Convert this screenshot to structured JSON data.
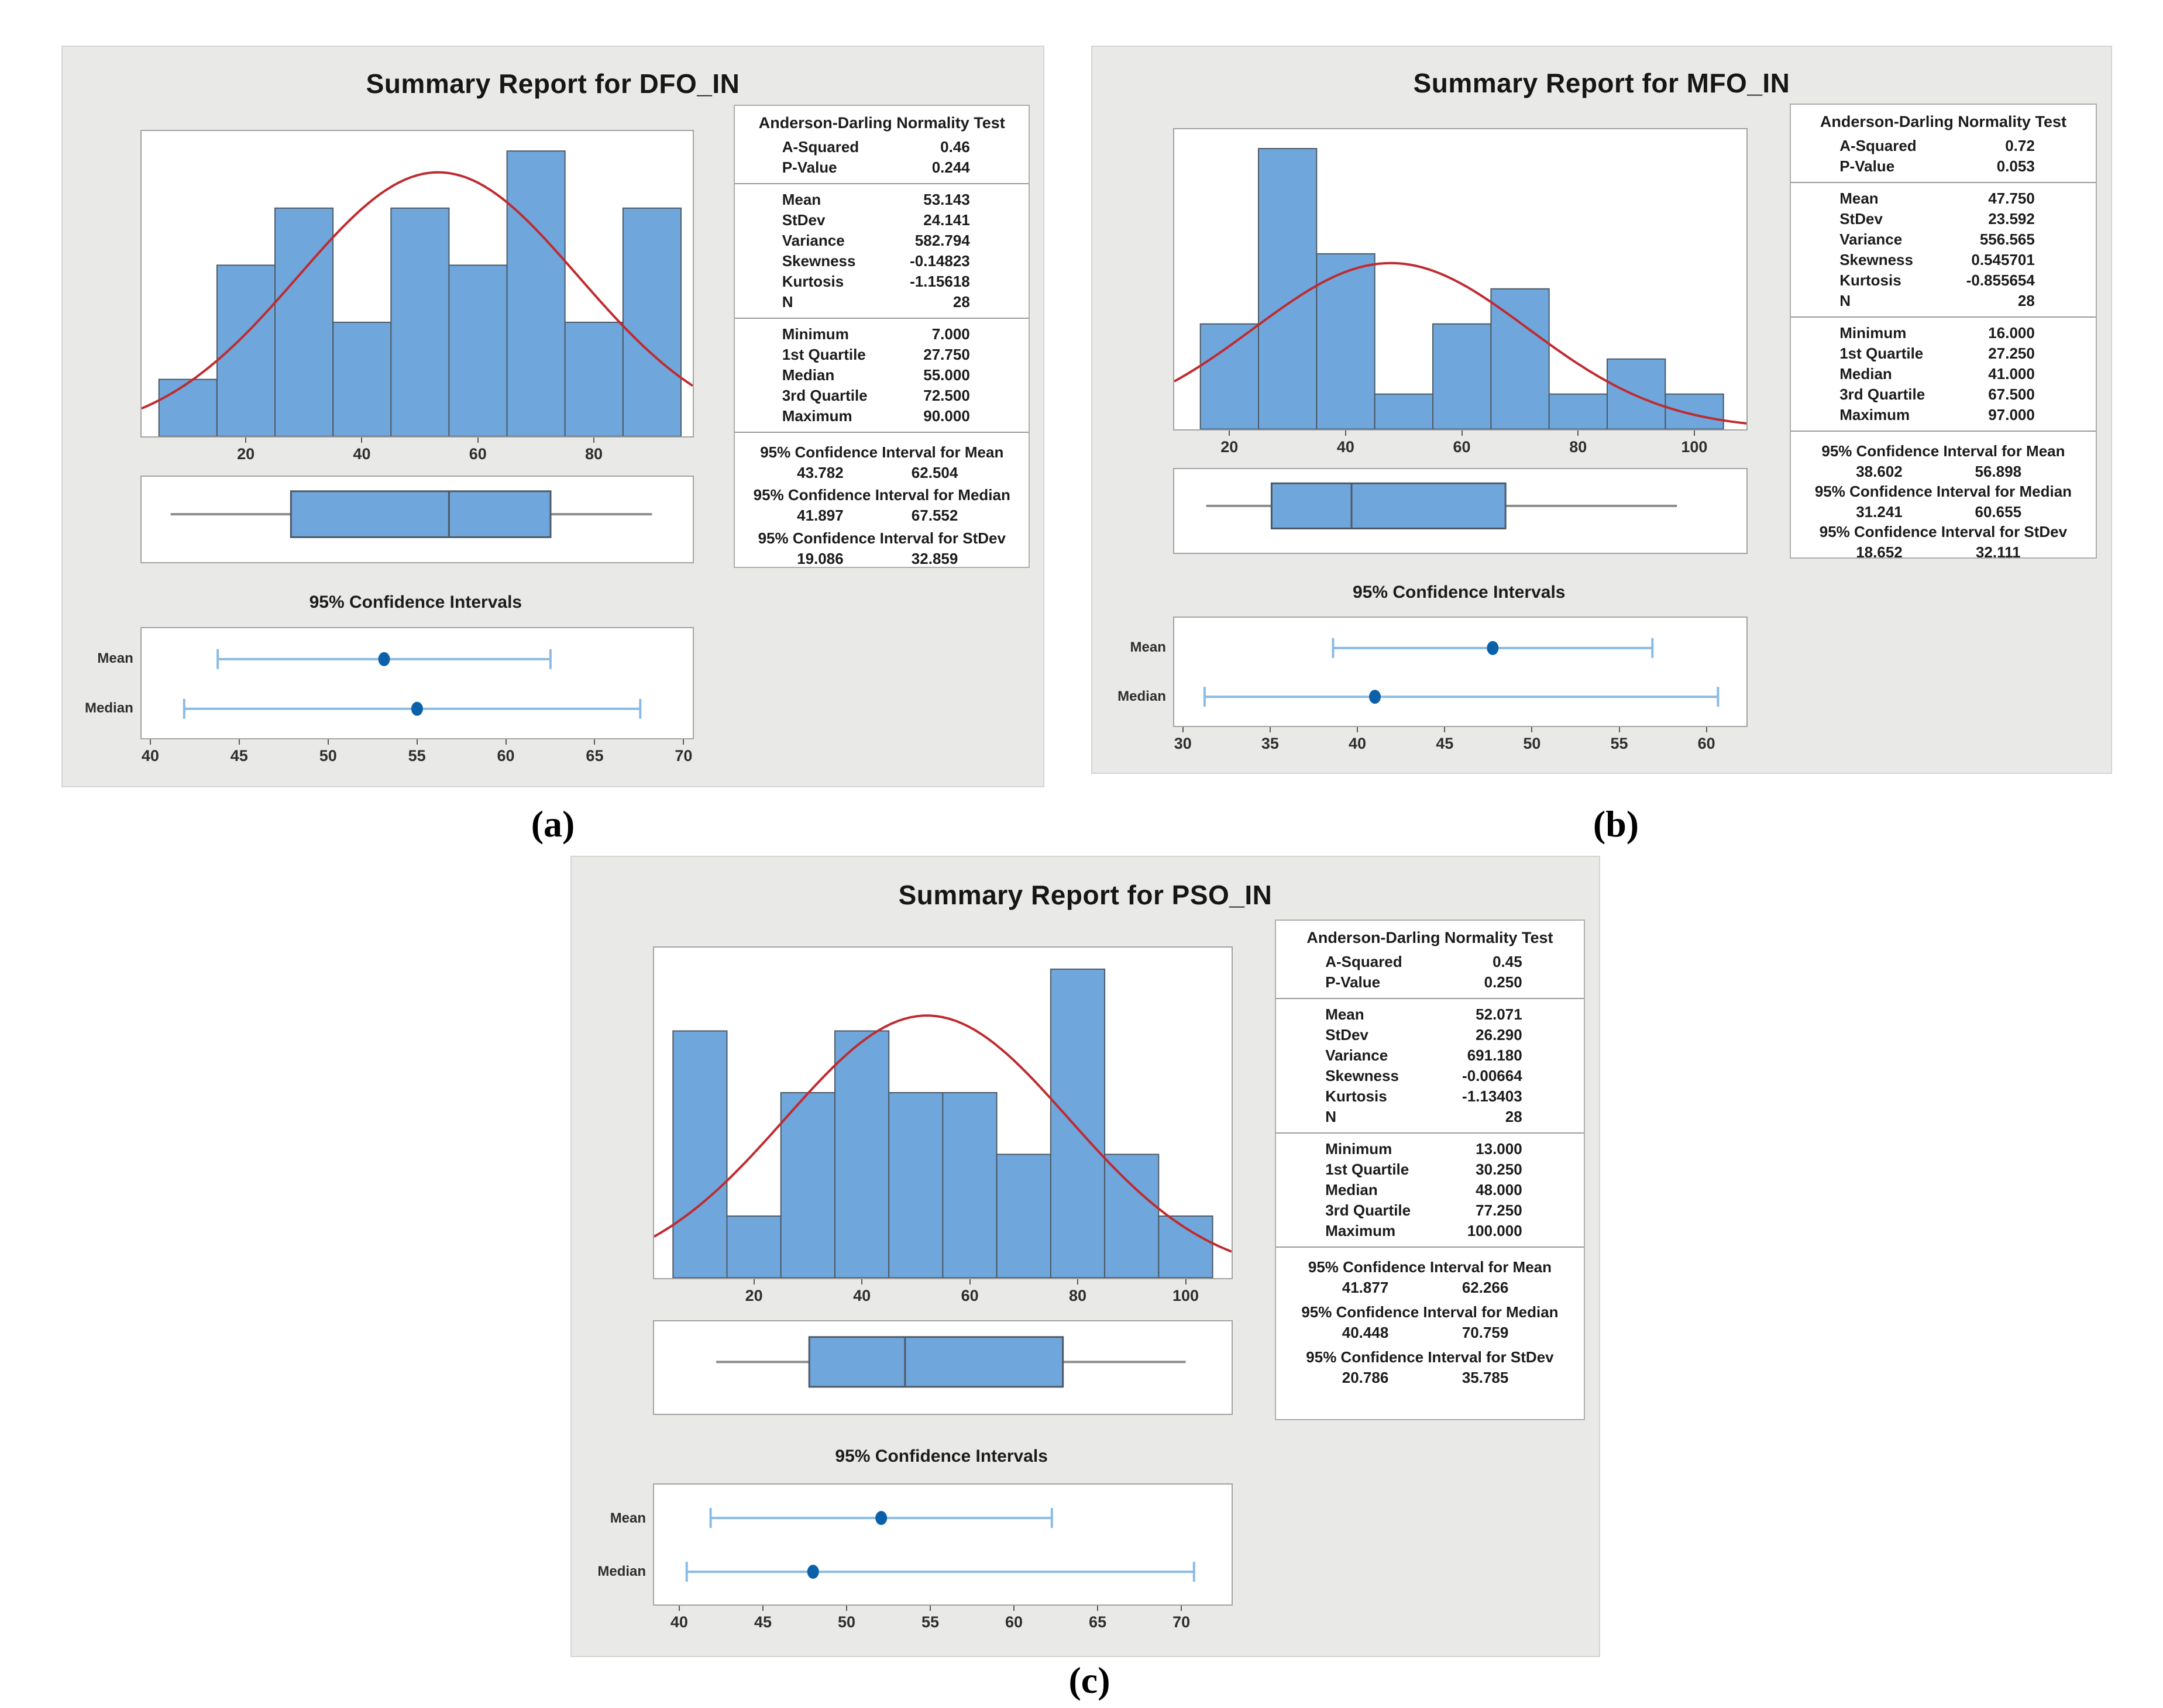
{
  "colors": {
    "panel_bg": "#e9e9e8",
    "plot_bg": "#ffffff",
    "plot_border": "#a3a3a3",
    "bar_fill": "#6fa6db",
    "bar_stroke": "#4d5a66",
    "curve": "#bf2b30",
    "box_stroke": "#4d5a66",
    "whisker": "#8c8c8c",
    "ci_line": "#8abbe4",
    "ci_point": "#0b61a9",
    "text": "#1c1c1c"
  },
  "chart_data": [
    {
      "id": "a",
      "caption": "(a)",
      "title": "Summary Report for DFO_IN",
      "type": "summary-report",
      "histogram": {
        "type": "bar",
        "bin_start": 5,
        "bin_width": 10,
        "counts": [
          1,
          3,
          4,
          2,
          4,
          3,
          5,
          2,
          4
        ],
        "x_ticks": [
          20,
          40,
          60,
          80
        ],
        "x_range": [
          2,
          97
        ],
        "y_max": 5.35,
        "normal_curve": {
          "mean": 53.143,
          "stdev": 24.141,
          "n": 28
        }
      },
      "boxplot": {
        "whisker_low": 7,
        "q1": 27.75,
        "median": 55,
        "q3": 72.5,
        "whisker_high": 90
      },
      "stats_table": {
        "header": "Anderson-Darling Normality Test",
        "sections": [
          {
            "rows": [
              [
                "A-Squared",
                "0.46"
              ],
              [
                "P-Value",
                "0.244"
              ]
            ]
          },
          {
            "rows": [
              [
                "Mean",
                "53.143"
              ],
              [
                "StDev",
                "24.141"
              ],
              [
                "Variance",
                "582.794"
              ],
              [
                "Skewness",
                "-0.14823"
              ],
              [
                "Kurtosis",
                "-1.15618"
              ],
              [
                "N",
                "28"
              ]
            ]
          },
          {
            "rows": [
              [
                "Minimum",
                "7.000"
              ],
              [
                "1st Quartile",
                "27.750"
              ],
              [
                "Median",
                "55.000"
              ],
              [
                "3rd Quartile",
                "72.500"
              ],
              [
                "Maximum",
                "90.000"
              ]
            ]
          }
        ],
        "ci_sections": [
          {
            "title": "95% Confidence Interval for Mean",
            "low": "43.782",
            "high": "62.504"
          },
          {
            "title": "95% Confidence Interval for Median",
            "low": "41.897",
            "high": "67.552"
          },
          {
            "title": "95% Confidence Interval for StDev",
            "low": "19.086",
            "high": "32.859"
          }
        ]
      },
      "ci_chart": {
        "title": "95% Confidence Intervals",
        "rows": [
          {
            "label": "Mean",
            "low": 43.782,
            "center": 53.143,
            "high": 62.504
          },
          {
            "label": "Median",
            "low": 41.897,
            "center": 55.0,
            "high": 67.552
          }
        ],
        "x_ticks": [
          40,
          45,
          50,
          55,
          60,
          65,
          70
        ],
        "x_range": [
          39.5,
          70.5
        ]
      }
    },
    {
      "id": "b",
      "caption": "(b)",
      "title": "Summary Report for MFO_IN",
      "type": "summary-report",
      "histogram": {
        "type": "bar",
        "bin_start": 15,
        "bin_width": 10,
        "counts": [
          3,
          8,
          5,
          1,
          3,
          4,
          1,
          2,
          1
        ],
        "x_ticks": [
          20,
          40,
          60,
          80,
          100
        ],
        "x_range": [
          10.5,
          109
        ],
        "y_max": 8.55,
        "normal_curve": {
          "mean": 47.75,
          "stdev": 23.592,
          "n": 28
        }
      },
      "boxplot": {
        "whisker_low": 16,
        "q1": 27.25,
        "median": 41,
        "q3": 67.5,
        "whisker_high": 97
      },
      "stats_table": {
        "header": "Anderson-Darling Normality Test",
        "sections": [
          {
            "rows": [
              [
                "A-Squared",
                "0.72"
              ],
              [
                "P-Value",
                "0.053"
              ]
            ]
          },
          {
            "rows": [
              [
                "Mean",
                "47.750"
              ],
              [
                "StDev",
                "23.592"
              ],
              [
                "Variance",
                "556.565"
              ],
              [
                "Skewness",
                "0.545701"
              ],
              [
                "Kurtosis",
                "-0.855654"
              ],
              [
                "N",
                "28"
              ]
            ]
          },
          {
            "rows": [
              [
                "Minimum",
                "16.000"
              ],
              [
                "1st Quartile",
                "27.250"
              ],
              [
                "Median",
                "41.000"
              ],
              [
                "3rd Quartile",
                "67.500"
              ],
              [
                "Maximum",
                "97.000"
              ]
            ]
          }
        ],
        "ci_sections": [
          {
            "title": "95% Confidence Interval for Mean",
            "low": "38.602",
            "high": "56.898"
          },
          {
            "title": "95% Confidence Interval for Median",
            "low": "31.241",
            "high": "60.655"
          },
          {
            "title": "95% Confidence Interval for StDev",
            "low": "18.652",
            "high": "32.111"
          }
        ]
      },
      "ci_chart": {
        "title": "95% Confidence Intervals",
        "rows": [
          {
            "label": "Mean",
            "low": 38.602,
            "center": 47.75,
            "high": 56.898
          },
          {
            "label": "Median",
            "low": 31.241,
            "center": 41.0,
            "high": 60.655
          }
        ],
        "x_ticks": [
          30,
          35,
          40,
          45,
          50,
          55,
          60
        ],
        "x_range": [
          29.5,
          62.3
        ]
      }
    },
    {
      "id": "c",
      "caption": "(c)",
      "title": "Summary Report for PSO_IN",
      "type": "summary-report",
      "histogram": {
        "type": "bar",
        "bin_start": 5,
        "bin_width": 10,
        "counts": [
          4,
          1,
          3,
          4,
          3,
          3,
          2,
          5,
          2,
          1
        ],
        "x_ticks": [
          20,
          40,
          60,
          80,
          100
        ],
        "x_range": [
          1.5,
          108.5
        ],
        "y_max": 5.35,
        "normal_curve": {
          "mean": 52.071,
          "stdev": 26.29,
          "n": 28
        }
      },
      "boxplot": {
        "whisker_low": 13,
        "q1": 30.25,
        "median": 48,
        "q3": 77.25,
        "whisker_high": 100
      },
      "stats_table": {
        "header": "Anderson-Darling Normality Test",
        "sections": [
          {
            "rows": [
              [
                "A-Squared",
                "0.45"
              ],
              [
                "P-Value",
                "0.250"
              ]
            ]
          },
          {
            "rows": [
              [
                "Mean",
                "52.071"
              ],
              [
                "StDev",
                "26.290"
              ],
              [
                "Variance",
                "691.180"
              ],
              [
                "Skewness",
                "-0.00664"
              ],
              [
                "Kurtosis",
                "-1.13403"
              ],
              [
                "N",
                "28"
              ]
            ]
          },
          {
            "rows": [
              [
                "Minimum",
                "13.000"
              ],
              [
                "1st Quartile",
                "30.250"
              ],
              [
                "Median",
                "48.000"
              ],
              [
                "3rd Quartile",
                "77.250"
              ],
              [
                "Maximum",
                "100.000"
              ]
            ]
          }
        ],
        "ci_sections": [
          {
            "title": "95% Confidence Interval for Mean",
            "low": "41.877",
            "high": "62.266"
          },
          {
            "title": "95% Confidence Interval for Median",
            "low": "40.448",
            "high": "70.759"
          },
          {
            "title": "95% Confidence Interval for StDev",
            "low": "20.786",
            "high": "35.785"
          }
        ]
      },
      "ci_chart": {
        "title": "95% Confidence Intervals",
        "rows": [
          {
            "label": "Mean",
            "low": 41.877,
            "center": 52.071,
            "high": 62.266
          },
          {
            "label": "Median",
            "low": 40.448,
            "center": 48.0,
            "high": 70.759
          }
        ],
        "x_ticks": [
          40,
          45,
          50,
          55,
          60,
          65,
          70
        ],
        "x_range": [
          38.5,
          73
        ]
      }
    }
  ]
}
